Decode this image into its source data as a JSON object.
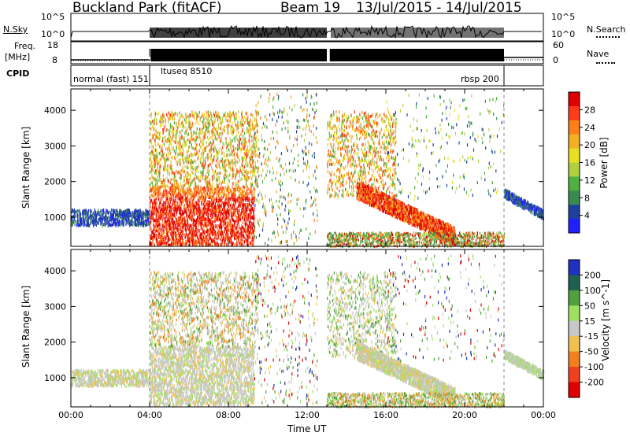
{
  "header": {
    "site": "Buckland Park (fitACF)",
    "beam": "Beam 19",
    "dates": "13/Jul/2015 - 14/Jul/2015"
  },
  "top_panels": {
    "nsky_label": "N.Sky",
    "nsky_ticks": [
      "10^5",
      "10^0"
    ],
    "nsky_right_ticks": [
      "10^5",
      "10^0"
    ],
    "nsearch_label": "N.Search",
    "freq_label_line1": "Freq.",
    "freq_label_line2": "[MHz]",
    "freq_ticks": [
      "18",
      "8"
    ],
    "freq_right_ticks": [
      "60",
      "0"
    ],
    "nave_label": "Nave",
    "cpid_label": "CPID",
    "cpid_segments": [
      "normal (fast) 151",
      "ltuseq 8510",
      "rbsp 200"
    ]
  },
  "power_colorbar": {
    "label": "Power [dB]",
    "ticks": [
      "28",
      "24",
      "20",
      "16",
      "12",
      "8",
      "4"
    ],
    "colors": [
      "#e00000",
      "#ff3a1a",
      "#ff7f1a",
      "#f0b020",
      "#e8e020",
      "#b0d040",
      "#50b040",
      "#3a8a50",
      "#2040a0",
      "#2020ff"
    ]
  },
  "velocity_colorbar": {
    "label": "Velocity [m s^-1]",
    "ticks": [
      "200",
      "100",
      "50",
      "15",
      "-15",
      "-50",
      "-100",
      "-200"
    ],
    "colors": [
      "#2030c0",
      "#206050",
      "#50a040",
      "#a0e060",
      "#c8c8c8",
      "#f0c050",
      "#f08020",
      "#f04020",
      "#e00000"
    ]
  },
  "chart_data": [
    {
      "type": "heatmap",
      "title": "Power",
      "xlabel": "Time UT",
      "ylabel": "Slant Range [km]",
      "x_ticks": [
        "00:00",
        "04:00",
        "08:00",
        "12:00",
        "16:00",
        "20:00",
        "00:00"
      ],
      "y_ticks": [
        1000,
        2000,
        3000,
        4000
      ],
      "xlim": [
        0,
        24
      ],
      "ylim": [
        180,
        4600
      ]
    },
    {
      "type": "heatmap",
      "title": "Velocity",
      "xlabel": "Time UT",
      "ylabel": "Slant Range [km]",
      "x_ticks": [
        "00:00",
        "04:00",
        "08:00",
        "12:00",
        "16:00",
        "20:00",
        "00:00"
      ],
      "y_ticks": [
        1000,
        2000,
        3000,
        4000
      ],
      "xlim": [
        0,
        24
      ],
      "ylim": [
        180,
        4600
      ]
    }
  ],
  "x_axis_label": "Time UT"
}
